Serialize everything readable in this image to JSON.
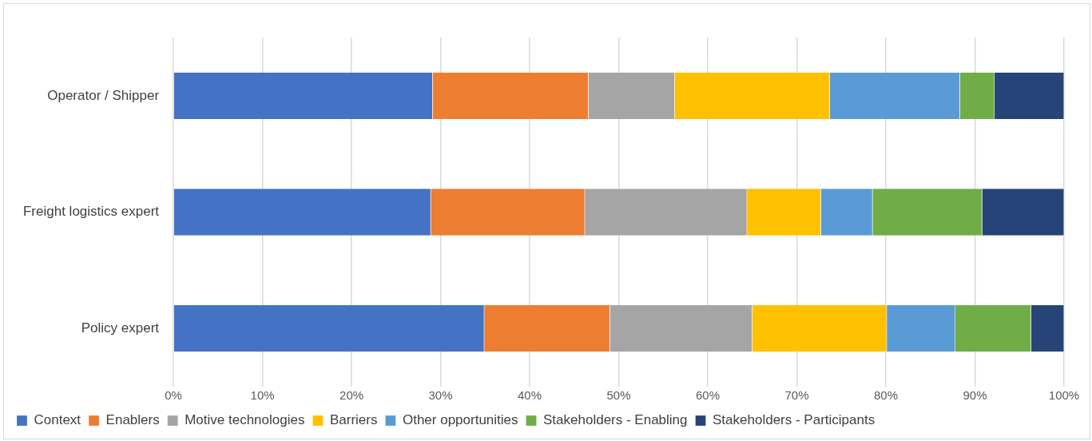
{
  "chart_data": {
    "type": "bar",
    "orientation": "horizontal",
    "stacked": true,
    "categories": [
      "Operator / Shipper",
      "Freight logistics expert",
      "Policy expert"
    ],
    "series": [
      {
        "name": "Context",
        "color": "#4472c4",
        "values": [
          29.1,
          28.9,
          34.9
        ]
      },
      {
        "name": "Enablers",
        "color": "#ed7d31",
        "values": [
          17.5,
          17.3,
          14.1
        ]
      },
      {
        "name": "Motive technologies",
        "color": "#a5a5a5",
        "values": [
          9.7,
          18.2,
          16.0
        ]
      },
      {
        "name": "Barriers",
        "color": "#ffc000",
        "values": [
          17.4,
          8.3,
          15.1
        ]
      },
      {
        "name": "Other opportunities",
        "color": "#5b9bd5",
        "values": [
          14.6,
          5.8,
          7.7
        ]
      },
      {
        "name": "Stakeholders - Enabling",
        "color": "#70ad47",
        "values": [
          3.9,
          12.3,
          8.5
        ]
      },
      {
        "name": "Stakeholders - Participants",
        "color": "#264478",
        "values": [
          7.8,
          9.2,
          3.7
        ]
      }
    ],
    "xlim": [
      0,
      100
    ],
    "xticks": [
      {
        "value": 0,
        "label": "0%"
      },
      {
        "value": 10,
        "label": "10%"
      },
      {
        "value": 20,
        "label": "20%"
      },
      {
        "value": 30,
        "label": "30%"
      },
      {
        "value": 40,
        "label": "40%"
      },
      {
        "value": 50,
        "label": "50%"
      },
      {
        "value": 60,
        "label": "60%"
      },
      {
        "value": 70,
        "label": "70%"
      },
      {
        "value": 80,
        "label": "80%"
      },
      {
        "value": 90,
        "label": "90%"
      },
      {
        "value": 100,
        "label": "100%"
      }
    ],
    "grid": "x",
    "legend": "bottom"
  }
}
